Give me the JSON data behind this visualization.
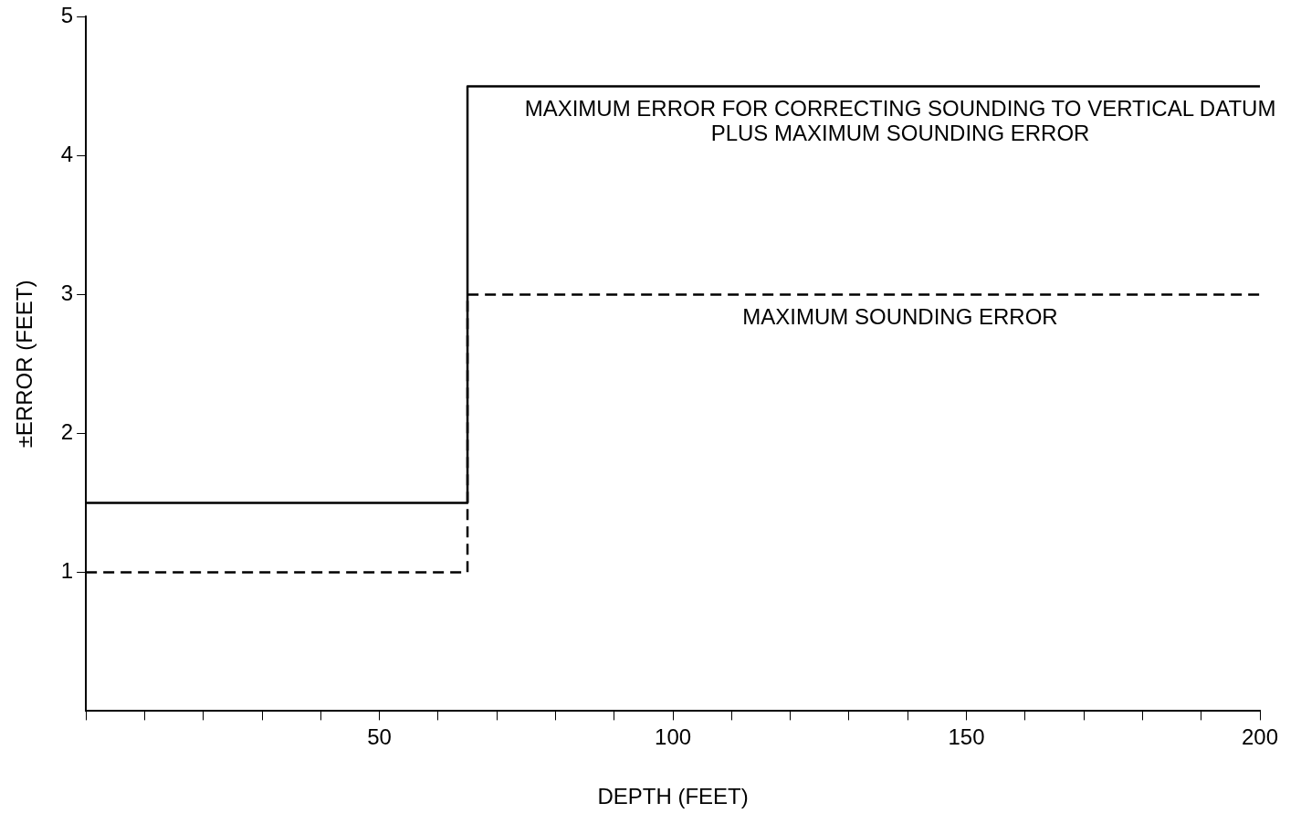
{
  "chart_data": {
    "type": "step",
    "xlabel": "DEPTH (FEET)",
    "ylabel": "±ERROR (FEET)",
    "xlim": [
      0,
      200
    ],
    "ylim": [
      0,
      5
    ],
    "xticks": [
      {
        "value": 0,
        "label": null
      },
      {
        "value": 10,
        "label": null
      },
      {
        "value": 20,
        "label": null
      },
      {
        "value": 30,
        "label": null
      },
      {
        "value": 40,
        "label": null
      },
      50,
      {
        "value": 60,
        "label": null
      },
      {
        "value": 70,
        "label": null
      },
      {
        "value": 80,
        "label": null
      },
      {
        "value": 90,
        "label": null
      },
      100,
      {
        "value": 110,
        "label": null
      },
      {
        "value": 120,
        "label": null
      },
      {
        "value": 130,
        "label": null
      },
      {
        "value": 140,
        "label": null
      },
      150,
      {
        "value": 160,
        "label": null
      },
      {
        "value": 170,
        "label": null
      },
      {
        "value": 180,
        "label": null
      },
      {
        "value": 190,
        "label": null
      },
      200
    ],
    "yticks": [
      1,
      2,
      3,
      4,
      5
    ],
    "grid": false,
    "legend": false,
    "marker": "none",
    "series": [
      {
        "name": "MAXIMUM ERROR FOR CORRECTING SOUNDING TO VERTICAL DATUM PLUS MAXIMUM SOUNDING ERROR",
        "color": "#000000",
        "line_style": "solid",
        "x": [
          0,
          65,
          200
        ],
        "values": [
          1.5,
          4.5,
          4.5
        ]
      },
      {
        "name": "MAXIMUM SOUNDING ERROR",
        "color": "#000000",
        "line_style": "dashed",
        "x": [
          0,
          65,
          200
        ],
        "values": [
          1,
          3,
          3
        ]
      }
    ]
  }
}
